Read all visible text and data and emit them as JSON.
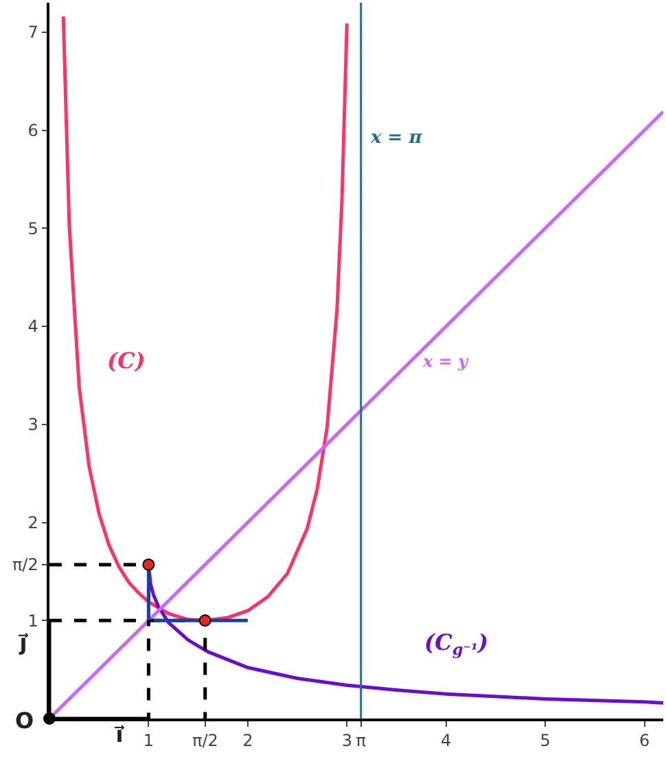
{
  "chart_data": {
    "type": "line",
    "xlim": [
      0,
      6.19
    ],
    "ylim": [
      0,
      7.3
    ],
    "xticks": [
      1,
      {
        "value": 1.5708,
        "label": "π/2"
      },
      2,
      3,
      {
        "value": 3.1416,
        "label": "π"
      },
      4,
      5,
      6
    ],
    "yticks": [
      1,
      {
        "value": 1.5708,
        "label": "π/2"
      },
      2,
      3,
      4,
      5,
      6,
      7
    ],
    "grid": false,
    "series": [
      {
        "color": "#ff3366",
        "x": [
          0.14,
          0.2,
          0.3,
          0.4,
          0.5,
          0.6,
          0.7,
          0.8,
          0.9,
          1,
          1.2,
          1.4,
          1.57,
          1.8,
          2.0,
          2.2,
          2.4,
          2.6,
          2.7,
          2.8,
          2.9,
          2.95,
          3.0
        ],
        "values": [
          7.16,
          5.03,
          3.38,
          2.57,
          2.09,
          1.77,
          1.55,
          1.39,
          1.28,
          1.19,
          1.07,
          1.01,
          1,
          1.03,
          1.1,
          1.24,
          1.48,
          1.94,
          2.34,
          2.97,
          4.17,
          5.3,
          7.09
        ]
      },
      {
        "color": "#6a0dcc",
        "x": [
          1,
          1.02,
          1.05,
          1.1,
          1.2,
          1.4,
          1.6,
          2,
          2.5,
          3,
          3.5,
          4,
          5,
          6,
          6.19
        ],
        "values": [
          1.57,
          1.37,
          1.26,
          1.14,
          0.98,
          0.8,
          0.68,
          0.52,
          0.41,
          0.34,
          0.29,
          0.25,
          0.2,
          0.17,
          0.16
        ]
      },
      {
        "color": "#cc66ff",
        "x": [
          0,
          6.19
        ],
        "values": [
          0,
          6.19
        ]
      },
      {
        "color": "#000000",
        "line_style": "dashed",
        "x": [
          0,
          1,
          1
        ],
        "values": [
          1.57,
          1.57,
          0
        ]
      },
      {
        "color": "#000000",
        "line_style": "dashed",
        "x": [
          0,
          1.57,
          1.57
        ],
        "values": [
          1,
          1,
          0
        ]
      },
      {
        "color": "#1b3fa6",
        "x": [
          1,
          1
        ],
        "values": [
          1.57,
          1
        ]
      },
      {
        "color": "#1b3fa6",
        "x": [
          1.05,
          2
        ],
        "values": [
          1,
          1
        ]
      },
      {
        "color": "#000000",
        "x": [
          0,
          1
        ],
        "values": [
          0,
          0
        ]
      },
      {
        "color": "#000000",
        "x": [
          0,
          0
        ],
        "values": [
          0,
          1
        ]
      },
      {
        "type": "scatter",
        "color": "#e8251f",
        "marker": "circle",
        "x": [
          1,
          1.57
        ],
        "values": [
          1.57,
          1
        ]
      },
      {
        "type": "scatter",
        "color": "#000000",
        "marker": "circle",
        "x": [
          0
        ],
        "values": [
          0
        ]
      }
    ],
    "ref_lines": [
      {
        "axis": "x",
        "value": 3.1416,
        "label": "x = π",
        "color": "#1e6e8c"
      }
    ],
    "annotations": [
      "(C)",
      "(C$_{g⁻¹}$)",
      "x = y",
      "i⃗",
      "j⃗",
      "O"
    ]
  }
}
